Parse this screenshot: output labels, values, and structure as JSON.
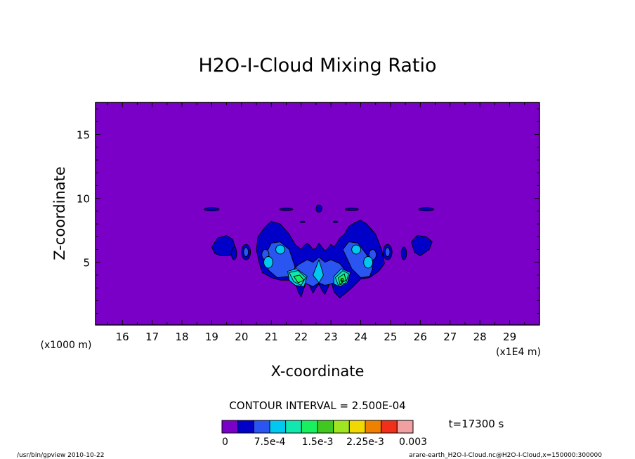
{
  "chart_data": {
    "type": "heatmap",
    "title": "H2O-I-Cloud Mixing Ratio",
    "xlabel": "X-coordinate",
    "ylabel": "Z-coordinate",
    "x_unit_label": "(x1E4 m)",
    "y_unit_label": "(x1000 m)",
    "xlim": [
      15.1,
      30.0
    ],
    "ylim": [
      0.1,
      17.5
    ],
    "x_ticks": [
      "16",
      "17",
      "18",
      "19",
      "20",
      "21",
      "22",
      "23",
      "24",
      "25",
      "26",
      "27",
      "28",
      "29"
    ],
    "y_ticks": [
      "5",
      "10",
      "15"
    ],
    "contour_interval_text": "CONTOUR INTERVAL = 2.500E-04",
    "time_text": "t=17300 s",
    "colorbar": {
      "colors": [
        "#7a00c8",
        "#0000c8",
        "#2a55f0",
        "#00c8f0",
        "#10e8b0",
        "#18f060",
        "#40c820",
        "#a0e620",
        "#f0d800",
        "#f08000",
        "#f03018",
        "#f0a0a0"
      ],
      "tick_labels": [
        "0",
        "7.5e-4",
        "1.5e-3",
        "2.25e-3",
        "0.003"
      ]
    },
    "footer_left": "/usr/bin/gpview  2010-10-22",
    "footer_right": "arare-earth_H2O-I-Cloud.nc@H2O-I-Cloud,x=150000:300000",
    "features": [
      {
        "level": 1,
        "shape": "poly",
        "x": [
          21.8,
          21.9,
          22.0,
          22.1,
          22.2,
          22.3,
          22.4,
          22.5,
          22.6,
          22.7,
          22.8,
          22.9,
          23.0,
          23.1,
          23.2,
          23.3,
          23.45,
          23.6,
          23.8,
          24.0,
          24.2,
          24.5,
          24.7,
          24.8,
          24.6,
          24.3,
          24.0,
          23.7,
          23.5,
          23.3,
          23.1,
          23.0,
          22.9,
          22.8,
          22.7,
          22.6,
          22.5,
          22.4,
          22.3,
          22.2,
          22.1,
          22.0,
          21.9,
          21.8,
          21.6,
          21.3,
          21.0,
          20.7,
          20.6,
          20.5,
          20.55,
          20.8,
          21.0,
          21.3,
          21.6
        ],
        "y": [
          6.4,
          6.2,
          6.0,
          6.3,
          6.5,
          6.3,
          6.0,
          6.1,
          6.5,
          6.2,
          5.9,
          6.1,
          6.4,
          6.2,
          6.5,
          6.9,
          7.2,
          7.8,
          8.1,
          8.3,
          8.0,
          7.2,
          6.0,
          4.9,
          4.3,
          3.8,
          3.7,
          3.0,
          2.6,
          2.2,
          2.7,
          3.6,
          3.0,
          2.5,
          2.8,
          3.3,
          3.0,
          2.6,
          3.1,
          3.6,
          3.0,
          2.3,
          2.7,
          3.5,
          3.6,
          3.6,
          3.8,
          4.2,
          4.9,
          6.0,
          7.0,
          7.8,
          8.2,
          8.0,
          7.2
        ]
      },
      {
        "level": 1,
        "shape": "ellipse",
        "x": 19.0,
        "y": 9.15,
        "rx": 0.25,
        "ry": 0.13
      },
      {
        "level": 1,
        "shape": "ellipse",
        "x": 26.2,
        "y": 9.15,
        "rx": 0.25,
        "ry": 0.13
      },
      {
        "level": 1,
        "shape": "ellipse",
        "x": 21.5,
        "y": 9.15,
        "rx": 0.22,
        "ry": 0.1
      },
      {
        "level": 1,
        "shape": "ellipse",
        "x": 23.7,
        "y": 9.15,
        "rx": 0.22,
        "ry": 0.1
      },
      {
        "level": 1,
        "shape": "ellipse",
        "x": 22.6,
        "y": 9.2,
        "rx": 0.1,
        "ry": 0.28
      },
      {
        "level": 1,
        "shape": "ellipse",
        "x": 22.05,
        "y": 8.15,
        "rx": 0.08,
        "ry": 0.06
      },
      {
        "level": 1,
        "shape": "ellipse",
        "x": 23.15,
        "y": 8.15,
        "rx": 0.08,
        "ry": 0.06
      },
      {
        "level": 1,
        "shape": "poly",
        "x": [
          19.0,
          19.2,
          19.5,
          19.7,
          19.8,
          19.6,
          19.3,
          19.1
        ],
        "y": [
          6.2,
          6.9,
          7.1,
          6.8,
          6.1,
          5.5,
          5.5,
          5.7
        ]
      },
      {
        "level": 1,
        "shape": "poly",
        "x": [
          25.7,
          25.9,
          26.2,
          26.4,
          26.3,
          26.0,
          25.8
        ],
        "y": [
          6.6,
          7.1,
          7.0,
          6.6,
          6.0,
          5.5,
          5.8
        ]
      },
      {
        "level": 1,
        "shape": "ellipse",
        "x": 19.75,
        "y": 5.7,
        "rx": 0.09,
        "ry": 0.5
      },
      {
        "level": 1,
        "shape": "ellipse",
        "x": 25.45,
        "y": 5.7,
        "rx": 0.09,
        "ry": 0.5
      },
      {
        "level": 1,
        "shape": "ellipse",
        "x": 20.15,
        "y": 5.8,
        "rx": 0.15,
        "ry": 0.6
      },
      {
        "level": 1,
        "shape": "ellipse",
        "x": 24.9,
        "y": 5.8,
        "rx": 0.15,
        "ry": 0.6
      },
      {
        "level": 2,
        "shape": "poly",
        "x": [
          21.9,
          22.2,
          22.4,
          22.6,
          22.8,
          23.0,
          23.3,
          23.5,
          23.3,
          23.0,
          22.8,
          22.6,
          22.4,
          22.2,
          21.9,
          21.7
        ],
        "y": [
          4.8,
          5.2,
          5.0,
          5.4,
          5.0,
          5.2,
          4.9,
          4.3,
          3.6,
          3.3,
          3.2,
          3.4,
          3.1,
          3.3,
          3.6,
          4.3
        ]
      },
      {
        "level": 2,
        "shape": "poly",
        "x": [
          20.8,
          21.0,
          21.3,
          21.6,
          21.8,
          21.6,
          21.2,
          20.9
        ],
        "y": [
          5.6,
          6.5,
          6.6,
          6.0,
          4.6,
          3.9,
          3.8,
          4.4
        ]
      },
      {
        "level": 2,
        "shape": "poly",
        "x": [
          23.4,
          23.6,
          23.9,
          24.2,
          24.4,
          24.3,
          24.0,
          23.7
        ],
        "y": [
          6.0,
          6.6,
          6.5,
          5.6,
          4.5,
          3.9,
          3.8,
          4.5
        ]
      },
      {
        "level": 2,
        "shape": "ellipse",
        "x": 20.8,
        "y": 5.6,
        "rx": 0.12,
        "ry": 0.4
      },
      {
        "level": 2,
        "shape": "ellipse",
        "x": 24.4,
        "y": 5.6,
        "rx": 0.12,
        "ry": 0.4
      },
      {
        "level": 2,
        "shape": "ellipse",
        "x": 20.15,
        "y": 5.8,
        "rx": 0.08,
        "ry": 0.35
      },
      {
        "level": 2,
        "shape": "ellipse",
        "x": 24.9,
        "y": 5.8,
        "rx": 0.08,
        "ry": 0.35
      },
      {
        "level": 3,
        "shape": "ellipse",
        "x": 21.3,
        "y": 6.0,
        "rx": 0.15,
        "ry": 0.35
      },
      {
        "level": 3,
        "shape": "ellipse",
        "x": 23.85,
        "y": 6.0,
        "rx": 0.15,
        "ry": 0.35
      },
      {
        "level": 3,
        "shape": "ellipse",
        "x": 20.9,
        "y": 5.0,
        "rx": 0.15,
        "ry": 0.45
      },
      {
        "level": 3,
        "shape": "ellipse",
        "x": 24.25,
        "y": 5.0,
        "rx": 0.15,
        "ry": 0.45
      },
      {
        "level": 3,
        "shape": "poly",
        "x": [
          22.4,
          22.6,
          22.75,
          22.6
        ],
        "y": [
          4.0,
          5.2,
          4.0,
          3.4
        ]
      },
      {
        "level": 3,
        "shape": "poly",
        "x": [
          21.55,
          21.85,
          22.2,
          22.1,
          21.8,
          21.6
        ],
        "y": [
          4.3,
          4.5,
          3.9,
          3.1,
          3.2,
          3.6
        ]
      },
      {
        "level": 3,
        "shape": "poly",
        "x": [
          23.1,
          23.35,
          23.65,
          23.55,
          23.3,
          23.1
        ],
        "y": [
          3.9,
          4.5,
          4.2,
          3.4,
          3.1,
          3.3
        ]
      },
      {
        "level": 4,
        "shape": "poly",
        "x": [
          21.6,
          21.9,
          22.15,
          22.0,
          21.75
        ],
        "y": [
          4.2,
          4.35,
          3.8,
          3.2,
          3.5
        ]
      },
      {
        "level": 4,
        "shape": "poly",
        "x": [
          23.15,
          23.4,
          23.6,
          23.5,
          23.25
        ],
        "y": [
          3.8,
          4.35,
          4.1,
          3.4,
          3.2
        ]
      },
      {
        "level": 5,
        "shape": "poly",
        "x": [
          21.75,
          21.95,
          22.1,
          21.9
        ],
        "y": [
          3.9,
          4.0,
          3.6,
          3.4
        ]
      },
      {
        "level": 5,
        "shape": "poly",
        "x": [
          23.25,
          23.45,
          23.5,
          23.3
        ],
        "y": [
          3.8,
          4.1,
          3.6,
          3.3
        ]
      },
      {
        "level": 6,
        "shape": "ellipse",
        "x": 23.38,
        "y": 3.6,
        "rx": 0.05,
        "ry": 0.15
      },
      {
        "level": 9,
        "shape": "ellipse",
        "x": 23.36,
        "y": 3.55,
        "rx": 0.02,
        "ry": 0.07
      }
    ]
  }
}
